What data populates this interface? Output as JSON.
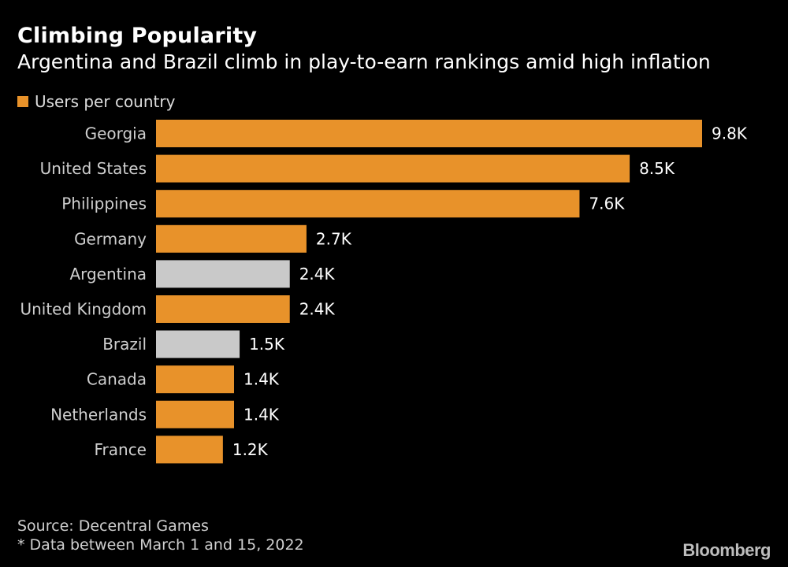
{
  "chart_data": {
    "type": "bar",
    "orientation": "horizontal",
    "title": "Climbing Popularity",
    "subtitle": "Argentina and Brazil climb in play-to-earn rankings amid high inflation",
    "legend": {
      "label": "Users per country",
      "placement": "top-left"
    },
    "categories": [
      "Georgia",
      "United States",
      "Philippines",
      "Germany",
      "Argentina",
      "United Kingdom",
      "Brazil",
      "Canada",
      "Netherlands",
      "France"
    ],
    "values": [
      9800,
      8500,
      7600,
      2700,
      2400,
      2400,
      1500,
      1400,
      1400,
      1200
    ],
    "value_labels": [
      "9.8K",
      "8.5K",
      "7.6K",
      "2.7K",
      "2.4K",
      "2.4K",
      "1.5K",
      "1.4K",
      "1.4K",
      "1.2K"
    ],
    "highlighted": [
      false,
      false,
      false,
      false,
      true,
      false,
      true,
      false,
      false,
      false
    ],
    "xlim": [
      0,
      9800
    ],
    "grid": false,
    "colors": {
      "default": "#e8922a",
      "highlight": "#c9c9c9"
    }
  },
  "footer": {
    "source": "Source: Decentral Games",
    "note": "* Data between March 1 and 15, 2022"
  },
  "brand": "Bloomberg",
  "colors": {
    "background": "#000000",
    "text": "#ffffff",
    "muted": "#cfcfcf"
  }
}
